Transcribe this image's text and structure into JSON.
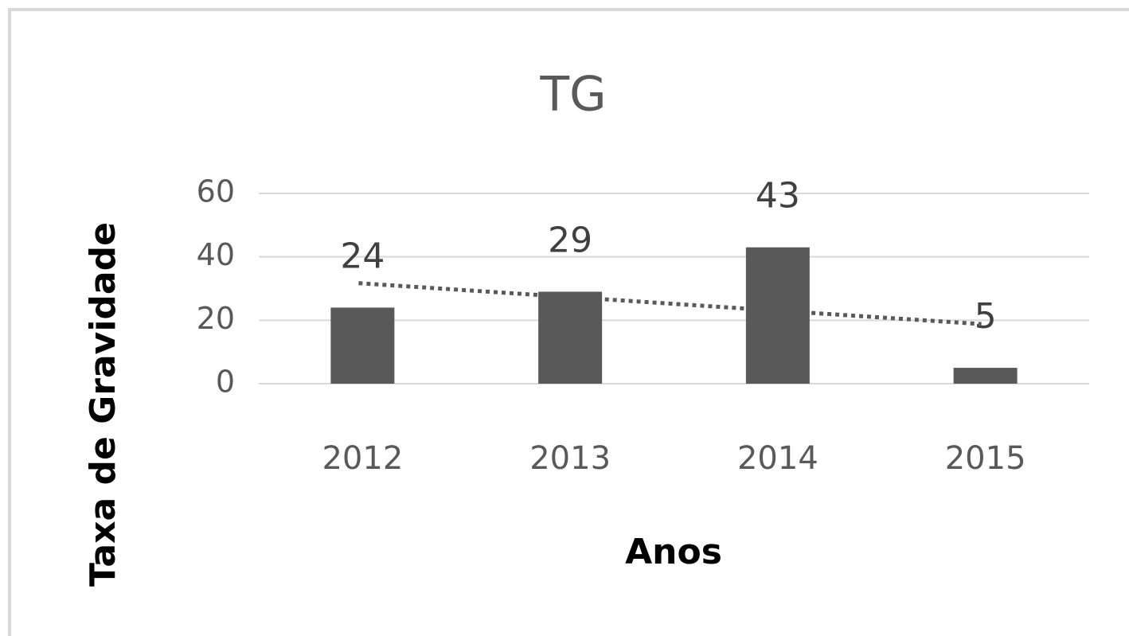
{
  "chart_data": {
    "type": "bar",
    "title": "TG",
    "x_label": "Anos",
    "y_label": "Taxa de Gravidade",
    "categories": [
      "2012",
      "2013",
      "2014",
      "2015"
    ],
    "values": [
      24,
      29,
      43,
      5
    ],
    "color": "#595959",
    "ylim": [
      0,
      60
    ],
    "yticks": [
      0,
      20,
      40,
      60
    ],
    "grid": true,
    "trendline": {
      "style": "dotted",
      "color": "#595959",
      "values": [
        31.7,
        27.4,
        23.1,
        18.8
      ]
    }
  }
}
